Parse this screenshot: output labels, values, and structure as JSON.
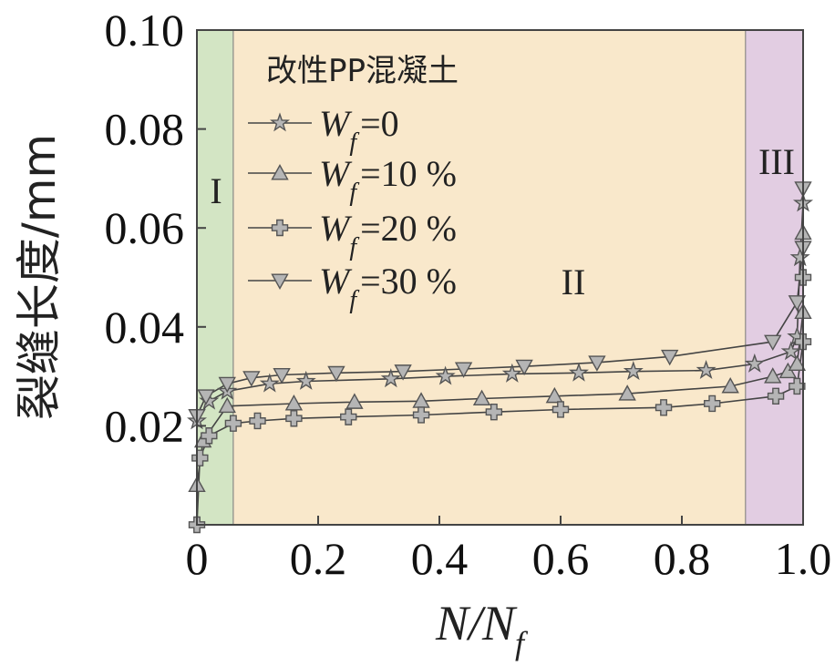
{
  "chart_data": {
    "type": "line",
    "title": "",
    "xlabel": {
      "main": "N/N",
      "sub": "f"
    },
    "ylabel": "裂缝长度/mm",
    "xlim": [
      0,
      1.0
    ],
    "ylim": [
      0,
      0.1
    ],
    "x_ticks": [
      "0",
      "0.2",
      "0.4",
      "0.6",
      "0.8",
      "1.0"
    ],
    "y_ticks": [
      "0.02",
      "0.04",
      "0.06",
      "0.08",
      "0.10"
    ],
    "x_tick_values": [
      0,
      0.2,
      0.4,
      0.6,
      0.8,
      1.0
    ],
    "y_tick_values": [
      0.02,
      0.04,
      0.06,
      0.08,
      0.1
    ],
    "grid": false,
    "legend": {
      "title": "改性PP混凝土",
      "placement": "top-left"
    },
    "regions": [
      {
        "label": "I",
        "x_range": [
          0,
          0.06
        ],
        "color": "#d3e5c4"
      },
      {
        "label": "II",
        "x_range": [
          0.06,
          0.905
        ],
        "color": "#f9e8cb"
      },
      {
        "label": "III",
        "x_range": [
          0.905,
          1.0
        ],
        "color": "#e2cde2"
      }
    ],
    "series": [
      {
        "name_main": "W",
        "name_sub": "f",
        "name_rest": "=0",
        "marker": "star",
        "x": [
          0,
          0.02,
          0.05,
          0.12,
          0.18,
          0.32,
          0.41,
          0.52,
          0.63,
          0.72,
          0.84,
          0.92,
          0.98,
          0.99,
          0.995,
          1.0
        ],
        "y": [
          0.021,
          0.025,
          0.027,
          0.0285,
          0.029,
          0.0295,
          0.03,
          0.0305,
          0.0307,
          0.031,
          0.0312,
          0.0325,
          0.035,
          0.038,
          0.054,
          0.065
        ]
      },
      {
        "name_main": "W",
        "name_sub": "f",
        "name_rest": "=10 %",
        "marker": "triangle-up",
        "x": [
          0,
          0.01,
          0.05,
          0.16,
          0.26,
          0.37,
          0.47,
          0.59,
          0.71,
          0.88,
          0.95,
          0.975,
          0.99,
          1.0,
          1.0
        ],
        "y": [
          0.008,
          0.017,
          0.024,
          0.0245,
          0.0248,
          0.025,
          0.0255,
          0.026,
          0.0265,
          0.028,
          0.03,
          0.031,
          0.0325,
          0.043,
          0.059
        ]
      },
      {
        "name_main": "W",
        "name_sub": "f",
        "name_rest": "=20 %",
        "marker": "plus",
        "x": [
          0,
          0.005,
          0.02,
          0.06,
          0.1,
          0.16,
          0.25,
          0.37,
          0.49,
          0.6,
          0.77,
          0.85,
          0.955,
          0.99,
          1.0,
          1.0
        ],
        "y": [
          0,
          0.0135,
          0.018,
          0.0205,
          0.021,
          0.0215,
          0.0218,
          0.0222,
          0.0228,
          0.0233,
          0.0237,
          0.0245,
          0.026,
          0.028,
          0.037,
          0.05
        ]
      },
      {
        "name_main": "W",
        "name_sub": "f",
        "name_rest": "=30 %",
        "marker": "triangle-down",
        "x": [
          0,
          0.015,
          0.05,
          0.09,
          0.14,
          0.23,
          0.34,
          0.44,
          0.54,
          0.66,
          0.78,
          0.95,
          0.99,
          1.0,
          1.0
        ],
        "y": [
          0.022,
          0.026,
          0.0285,
          0.0297,
          0.0303,
          0.0307,
          0.031,
          0.0315,
          0.032,
          0.0328,
          0.034,
          0.037,
          0.045,
          0.056,
          0.068
        ]
      }
    ]
  }
}
